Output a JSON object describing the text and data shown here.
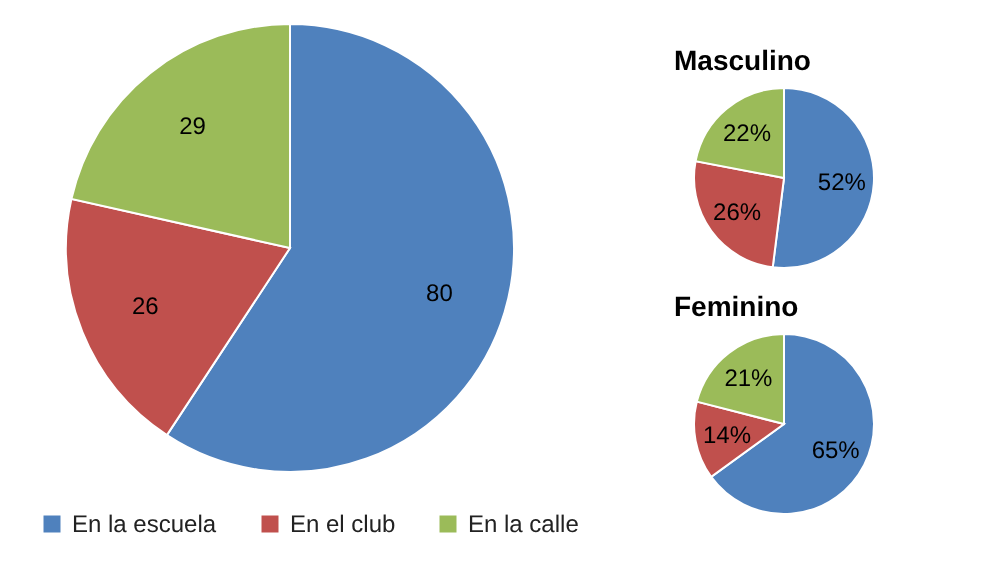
{
  "chart_data": [
    {
      "type": "pie",
      "categories": [
        "En la escuela",
        "En el club",
        "En la calle"
      ],
      "values": [
        80,
        26,
        29
      ],
      "colors": [
        "#4f81bd",
        "#c0504d",
        "#9bbb59"
      ],
      "data_labels": true,
      "legend": "bottom"
    },
    {
      "type": "pie",
      "title": "Masculino",
      "values": [
        52,
        26,
        22
      ],
      "value_labels": [
        "52%",
        "26%",
        "22%"
      ],
      "colors": [
        "#4f81bd",
        "#c0504d",
        "#9bbb59"
      ]
    },
    {
      "type": "pie",
      "title": "Feminino",
      "values": [
        65,
        14,
        21
      ],
      "value_labels": [
        "65%",
        "14%",
        "21%"
      ],
      "colors": [
        "#4f81bd",
        "#c0504d",
        "#9bbb59"
      ]
    }
  ]
}
